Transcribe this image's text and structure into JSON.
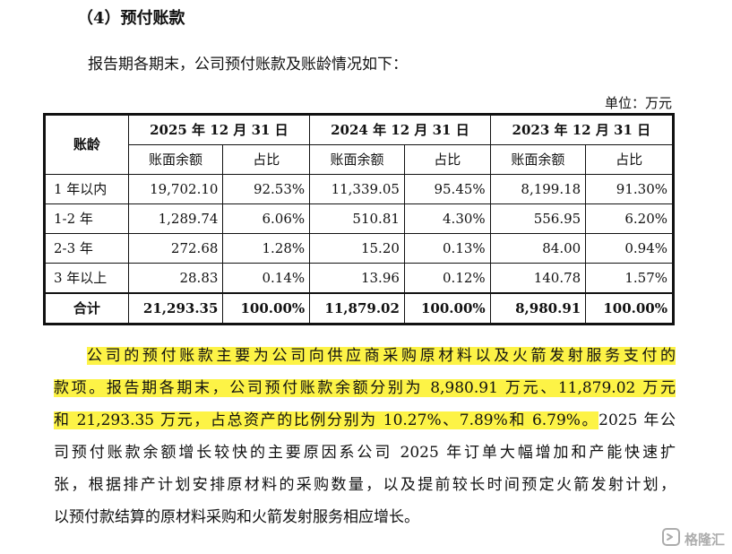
{
  "section": {
    "heading": "（4）预付账款",
    "intro": "报告期各期末，公司预付账款及账龄情况如下：",
    "unit_label": "单位：万元"
  },
  "table": {
    "corner_header": "账龄",
    "years": [
      "2025 年 12 月 31 日",
      "2024 年 12 月 31 日",
      "2023 年 12 月 31 日"
    ],
    "sub_headers": [
      "账面余额",
      "占比"
    ],
    "rows": [
      {
        "label": "1 年以内",
        "cells": [
          "19,702.10",
          "92.53%",
          "11,339.05",
          "95.45%",
          "8,199.18",
          "91.30%"
        ]
      },
      {
        "label": "1-2 年",
        "cells": [
          "1,289.74",
          "6.06%",
          "510.81",
          "4.30%",
          "556.95",
          "6.20%"
        ]
      },
      {
        "label": "2-3 年",
        "cells": [
          "272.68",
          "1.28%",
          "15.20",
          "0.13%",
          "84.00",
          "0.94%"
        ]
      },
      {
        "label": "3 年以上",
        "cells": [
          "28.83",
          "0.14%",
          "13.96",
          "0.12%",
          "140.78",
          "1.57%"
        ]
      }
    ],
    "total": {
      "label": "合计",
      "cells": [
        "21,293.35",
        "100.00%",
        "11,879.02",
        "100.00%",
        "8,980.91",
        "100.00%"
      ]
    }
  },
  "paragraph": {
    "line1": "公司的预付账款主要为公司向供应商采购原材料以及火箭发射服务支付的",
    "line2": "款项。报告期各期末，公司预付账款余额分别为 8,980.91 万元、11,879.02 万元",
    "line3_highlight": "和 21,293.35 万元，占总资产的比例分别为 10.27%、7.89%和 6.79%。",
    "line3_rest": "2025 年公",
    "line4": "司预付账款余额增长较快的主要原因系公司 2025 年订单大幅增加和产能快速扩",
    "line5": "张，根据排产计划安排原材料的采购数量，以及提前较长时间预定火箭发射计划，",
    "line6": "以预付款结算的原材料采购和火箭发射服务相应增长。"
  },
  "watermark": {
    "text": "格隆汇",
    "icon": "gelonghui-logo-icon"
  },
  "colors": {
    "highlight": "#fdf346",
    "text": "#111111",
    "border": "#111111"
  }
}
